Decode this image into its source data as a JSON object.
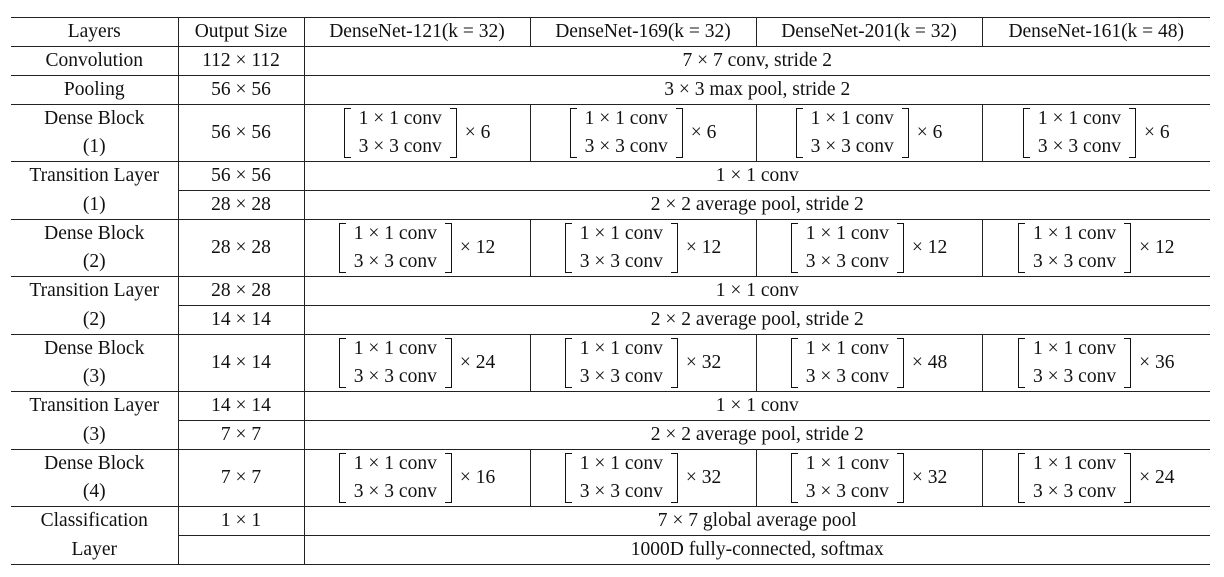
{
  "header": {
    "layers": "Layers",
    "output_size": "Output Size",
    "models": [
      "DenseNet-121(k = 32)",
      "DenseNet-169(k = 32)",
      "DenseNet-201(k = 32)",
      "DenseNet-161(k = 48)"
    ]
  },
  "block_lines": {
    "line1": "1 × 1 conv",
    "line2": "3 × 3 conv"
  },
  "rows": {
    "convolution": {
      "layer": "Convolution",
      "size": "112 × 112",
      "desc": "7 × 7 conv, stride 2"
    },
    "pooling": {
      "layer": "Pooling",
      "size": "56 × 56",
      "desc": "3 × 3 max pool, stride 2"
    },
    "dense1": {
      "layer1": "Dense Block",
      "layer2": "(1)",
      "size": "56 × 56",
      "mult": [
        "× 6",
        "× 6",
        "× 6",
        "× 6"
      ]
    },
    "trans1": {
      "layer1": "Transition Layer",
      "layer2": "(1)",
      "size1": "56 × 56",
      "desc1": "1 × 1 conv",
      "size2": "28 × 28",
      "desc2": "2 × 2 average pool, stride 2"
    },
    "dense2": {
      "layer1": "Dense Block",
      "layer2": "(2)",
      "size": "28 × 28",
      "mult": [
        "× 12",
        "× 12",
        "× 12",
        "× 12"
      ]
    },
    "trans2": {
      "layer1": "Transition Layer",
      "layer2": "(2)",
      "size1": "28 × 28",
      "desc1": "1 × 1 conv",
      "size2": "14 × 14",
      "desc2": "2 × 2 average pool, stride 2"
    },
    "dense3": {
      "layer1": "Dense Block",
      "layer2": "(3)",
      "size": "14 × 14",
      "mult": [
        "× 24",
        "× 32",
        "× 48",
        "× 36"
      ]
    },
    "trans3": {
      "layer1": "Transition Layer",
      "layer2": "(3)",
      "size1": "14 × 14",
      "desc1": "1 × 1 conv",
      "size2": "7 × 7",
      "desc2": "2 × 2 average pool, stride 2"
    },
    "dense4": {
      "layer1": "Dense Block",
      "layer2": "(4)",
      "size": "7 × 7",
      "mult": [
        "× 16",
        "× 32",
        "× 32",
        "× 24"
      ]
    },
    "classification": {
      "layer1": "Classification",
      "layer2": "Layer",
      "size": "1 × 1",
      "desc1": "7 × 7 global average pool",
      "desc2": "1000D fully-connected, softmax"
    }
  }
}
